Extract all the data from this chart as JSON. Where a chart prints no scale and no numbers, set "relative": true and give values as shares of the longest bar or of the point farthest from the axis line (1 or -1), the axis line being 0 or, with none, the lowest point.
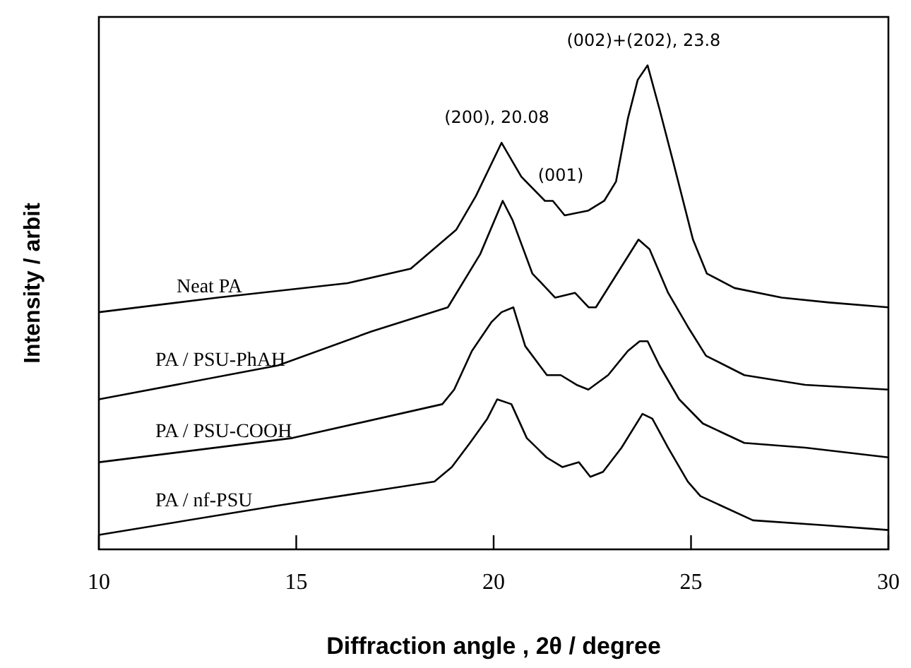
{
  "chart_data": {
    "type": "line",
    "relative": true,
    "xlabel": "Diffraction angle , 2θ / degree",
    "ylabel": "Intensity / arbit",
    "xlim": [
      10,
      30
    ],
    "xticks": [
      10,
      15,
      20,
      25,
      30
    ],
    "grid": false,
    "legend": false,
    "marker": "none",
    "line_style": "solid",
    "series": [
      {
        "name": "Neat PA",
        "color": "#000000",
        "x": [
          10,
          13,
          16.3,
          17.9,
          19.05,
          19.55,
          20.2,
          20.7,
          21.3,
          21.5,
          21.8,
          22.4,
          22.8,
          23.1,
          23.4,
          23.65,
          23.9,
          24.2,
          24.55,
          25.05,
          25.4,
          26.1,
          27.3,
          28.5,
          30
        ],
        "values": [
          0.49,
          0.52,
          0.55,
          0.58,
          0.66,
          0.73,
          0.84,
          0.77,
          0.72,
          0.72,
          0.69,
          0.7,
          0.72,
          0.76,
          0.89,
          0.97,
          1.0,
          0.91,
          0.8,
          0.64,
          0.57,
          0.54,
          0.52,
          0.51,
          0.5
        ]
      },
      {
        "name": "PA / PSU-PhAH",
        "color": "#000000",
        "x": [
          10,
          14.54,
          16.9,
          18.84,
          19.66,
          20.23,
          20.48,
          20.98,
          21.56,
          22.06,
          22.41,
          22.59,
          23.13,
          23.67,
          23.95,
          24.42,
          24.92,
          25.38,
          26.35,
          27.89,
          30
        ],
        "values": [
          0.31,
          0.38,
          0.45,
          0.5,
          0.61,
          0.72,
          0.68,
          0.57,
          0.52,
          0.53,
          0.5,
          0.5,
          0.57,
          0.64,
          0.62,
          0.53,
          0.46,
          0.4,
          0.36,
          0.34,
          0.33
        ]
      },
      {
        "name": "PA / PSU-COOH",
        "color": "#000000",
        "x": [
          10,
          14.9,
          18.7,
          19.0,
          19.45,
          19.95,
          20.2,
          20.5,
          20.8,
          21.35,
          21.7,
          22.1,
          22.4,
          22.9,
          23.4,
          23.7,
          23.9,
          24.2,
          24.7,
          25.3,
          26.35,
          27.9,
          30
        ],
        "values": [
          0.18,
          0.23,
          0.3,
          0.33,
          0.41,
          0.47,
          0.49,
          0.5,
          0.42,
          0.36,
          0.36,
          0.34,
          0.33,
          0.36,
          0.41,
          0.43,
          0.43,
          0.38,
          0.31,
          0.26,
          0.22,
          0.21,
          0.19
        ]
      },
      {
        "name": "PA / nf-PSU",
        "color": "#000000",
        "x": [
          10,
          14.5,
          18.5,
          18.94,
          19.4,
          19.84,
          20.09,
          20.45,
          20.84,
          21.34,
          21.74,
          22.16,
          22.45,
          22.77,
          23.24,
          23.77,
          24.02,
          24.42,
          24.92,
          25.24,
          26.57,
          28.35,
          30
        ],
        "values": [
          0.03,
          0.09,
          0.14,
          0.17,
          0.22,
          0.27,
          0.31,
          0.3,
          0.23,
          0.19,
          0.17,
          0.18,
          0.15,
          0.16,
          0.21,
          0.28,
          0.27,
          0.21,
          0.14,
          0.11,
          0.06,
          0.05,
          0.04
        ]
      }
    ],
    "annotations": [
      {
        "text": "(200), 20.08",
        "x": 20.08,
        "y": 0.84
      },
      {
        "text": "(001)",
        "x": 21.7,
        "y": 0.72
      },
      {
        "text": "(002)+(202), 23.8",
        "x": 23.8,
        "y": 1.0
      }
    ]
  }
}
